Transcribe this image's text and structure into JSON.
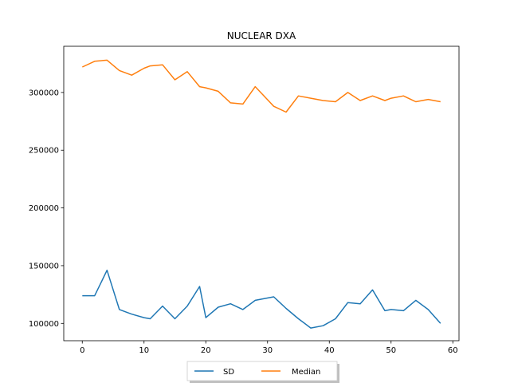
{
  "chart_data": {
    "type": "line",
    "title": "NUCLEAR DXA",
    "xlabel": "",
    "ylabel": "",
    "xlim": [
      -3,
      61
    ],
    "ylim": [
      85000,
      340000
    ],
    "xticks": [
      0,
      10,
      20,
      30,
      40,
      50,
      60
    ],
    "yticks": [
      100000,
      150000,
      200000,
      250000,
      300000
    ],
    "grid": false,
    "legend_position": "bottom-center",
    "colors": {
      "SD": "#1f77b4",
      "Median": "#ff7f0e"
    },
    "series": [
      {
        "name": "SD",
        "x": [
          0,
          2,
          4,
          6,
          8,
          10,
          11,
          13,
          15,
          17,
          19,
          20,
          22,
          24,
          26,
          28,
          31,
          33,
          35,
          37,
          39,
          41,
          43,
          45,
          47,
          49,
          50,
          52,
          54,
          56,
          58
        ],
        "values": [
          124000,
          124000,
          146000,
          112000,
          108000,
          105000,
          104000,
          115000,
          104000,
          115000,
          132000,
          105000,
          114000,
          117000,
          112000,
          120000,
          123000,
          113000,
          104000,
          96000,
          98000,
          104000,
          118000,
          117000,
          129000,
          111000,
          112000,
          111000,
          120000,
          112000,
          100000
        ]
      },
      {
        "name": "Median",
        "x": [
          0,
          2,
          4,
          6,
          8,
          10,
          11,
          13,
          15,
          17,
          19,
          20,
          22,
          24,
          26,
          28,
          31,
          33,
          35,
          37,
          39,
          41,
          43,
          45,
          47,
          49,
          50,
          52,
          54,
          56,
          58
        ],
        "values": [
          322000,
          327000,
          328000,
          319000,
          315000,
          321000,
          323000,
          324000,
          311000,
          318000,
          305000,
          304000,
          301000,
          291000,
          290000,
          305000,
          288000,
          283000,
          297000,
          295000,
          293000,
          292000,
          300000,
          293000,
          297000,
          293000,
          295000,
          297000,
          292000,
          294000,
          292000
        ]
      }
    ]
  }
}
